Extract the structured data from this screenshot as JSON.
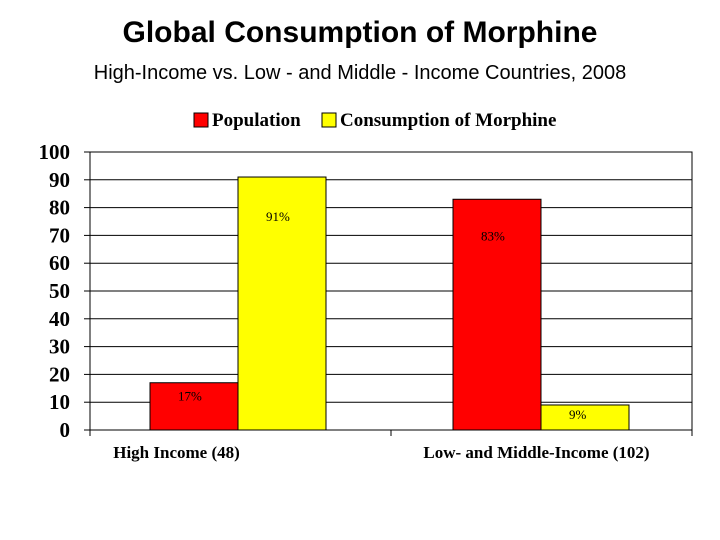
{
  "title": "Global Consumption of Morphine",
  "subtitle": "High-Income vs. Low - and Middle - Income Countries, 2008",
  "colors": {
    "population": "#ff0000",
    "morphine": "#ffff00",
    "grid": "#000000",
    "background": "#ffffff"
  },
  "chart_data": {
    "type": "bar",
    "title": "Global Consumption of Morphine",
    "subtitle": "High-Income vs. Low - and Middle - Income Countries, 2008",
    "categories": [
      "High Income (48)",
      "Low- and Middle-Income (102)"
    ],
    "series": [
      {
        "name": "Population",
        "values": [
          17,
          83
        ],
        "labels": [
          "17%",
          "83%"
        ],
        "color": "#ff0000"
      },
      {
        "name": "Consumption of Morphine",
        "values": [
          91,
          9
        ],
        "labels": [
          "91%",
          "9%"
        ],
        "color": "#ffff00"
      }
    ],
    "ylim": [
      0,
      100
    ],
    "yticks": [
      0,
      10,
      20,
      30,
      40,
      50,
      60,
      70,
      80,
      90,
      100
    ],
    "grid": true,
    "legend": "top"
  }
}
